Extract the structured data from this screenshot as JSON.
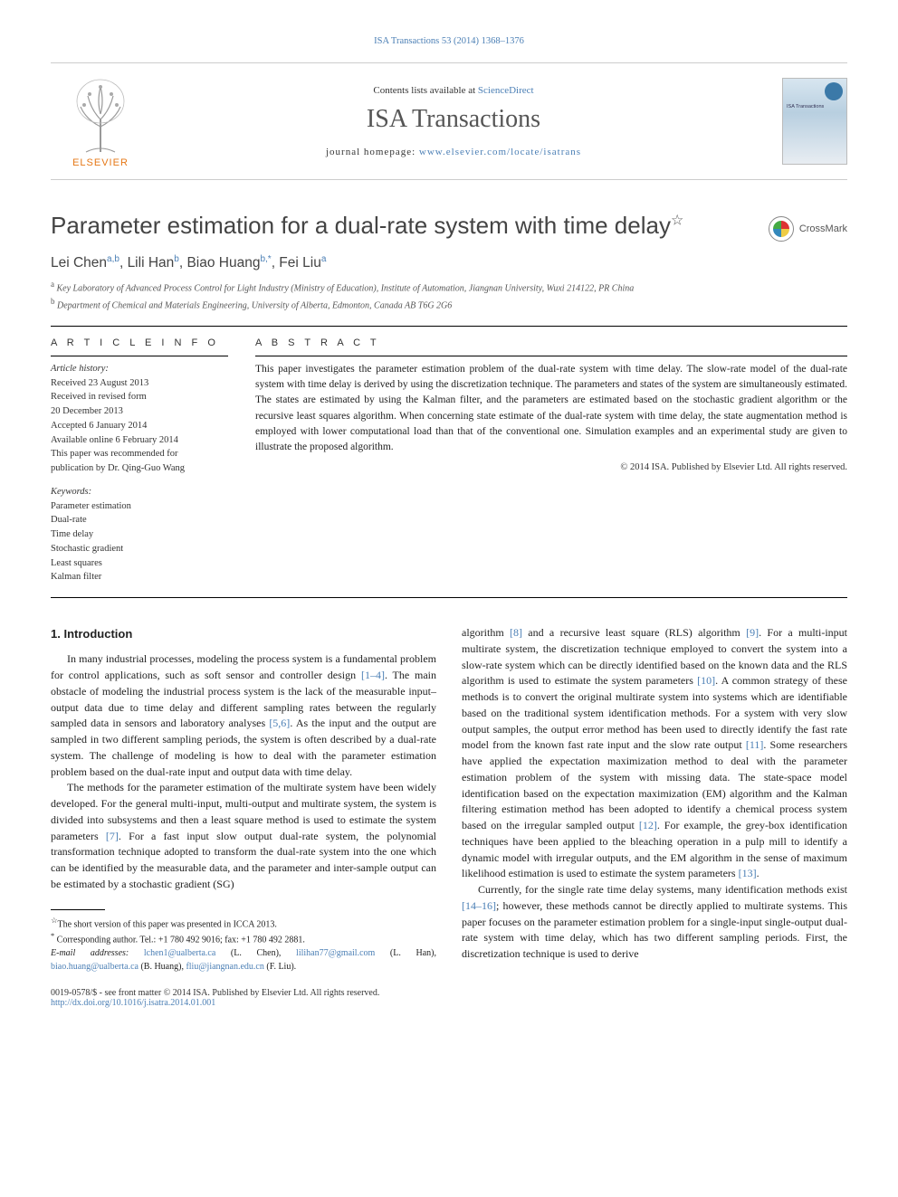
{
  "top_citation": "ISA Transactions 53 (2014) 1368–1376",
  "header": {
    "publisher_label": "ELSEVIER",
    "contents_prefix": "Contents lists available at ",
    "contents_link": "ScienceDirect",
    "journal_name": "ISA Transactions",
    "homepage_prefix": "journal homepage: ",
    "homepage_url": "www.elsevier.com/locate/isatrans"
  },
  "title": "Parameter estimation for a dual-rate system with time delay",
  "title_footnote_mark": "☆",
  "crossmark_label": "CrossMark",
  "authors_html": "Lei Chen<sup>a,b</sup>, Lili Han<sup>b</sup>, Biao Huang<sup>b,*</sup>, Fei Liu<sup>a</sup>",
  "affiliations": {
    "a": "Key Laboratory of Advanced Process Control for Light Industry (Ministry of Education), Institute of Automation, Jiangnan University, Wuxi 214122, PR China",
    "b": "Department of Chemical and Materials Engineering, University of Alberta, Edmonton, Canada AB T6G 2G6"
  },
  "article_info": {
    "heading": "A R T I C L E  I N F O",
    "history_label": "Article history:",
    "history": [
      "Received 23 August 2013",
      "Received in revised form",
      "20 December 2013",
      "Accepted 6 January 2014",
      "Available online 6 February 2014",
      "This paper was recommended for",
      "publication by Dr. Qing-Guo Wang"
    ],
    "keywords_label": "Keywords:",
    "keywords": [
      "Parameter estimation",
      "Dual-rate",
      "Time delay",
      "Stochastic gradient",
      "Least squares",
      "Kalman filter"
    ]
  },
  "abstract": {
    "heading": "A B S T R A C T",
    "text": "This paper investigates the parameter estimation problem of the dual-rate system with time delay. The slow-rate model of the dual-rate system with time delay is derived by using the discretization technique. The parameters and states of the system are simultaneously estimated. The states are estimated by using the Kalman filter, and the parameters are estimated based on the stochastic gradient algorithm or the recursive least squares algorithm. When concerning state estimate of the dual-rate system with time delay, the state augmentation method is employed with lower computational load than that of the conventional one. Simulation examples and an experimental study are given to illustrate the proposed algorithm.",
    "copyright": "© 2014 ISA. Published by Elsevier Ltd. All rights reserved."
  },
  "intro_heading": "1.  Introduction",
  "intro": {
    "p1": "In many industrial processes, modeling the process system is a fundamental problem for control applications, such as soft sensor and controller design [1–4]. The main obstacle of modeling the industrial process system is the lack of the measurable input–output data due to time delay and different sampling rates between the regularly sampled data in sensors and laboratory analyses [5,6]. As the input and the output are sampled in two different sampling periods, the system is often described by a dual-rate system. The challenge of modeling is how to deal with the parameter estimation problem based on the dual-rate input and output data with time delay.",
    "p2": "The methods for the parameter estimation of the multirate system have been widely developed. For the general multi-input, multi-output and multirate system, the system is divided into subsystems and then a least square method is used to estimate the system parameters [7]. For a fast input slow output dual-rate system, the polynomial transformation technique adopted to transform the dual-rate system into the one which can be identified by the measurable data, and the parameter and inter-sample output can be estimated by a stochastic gradient (SG)",
    "p3": "algorithm [8] and a recursive least square (RLS) algorithm [9]. For a multi-input multirate system, the discretization technique employed to convert the system into a slow-rate system which can be directly identified based on the known data and the RLS algorithm is used to estimate the system parameters [10]. A common strategy of these methods is to convert the original multirate system into systems which are identifiable based on the traditional system identification methods. For a system with very slow output samples, the output error method has been used to directly identify the fast rate model from the known fast rate input and the slow rate output [11]. Some researchers have applied the expectation maximization method to deal with the parameter estimation problem of the system with missing data. The state-space model identification based on the expectation maximization (EM) algorithm and the Kalman filtering estimation method has been adopted to identify a chemical process system based on the irregular sampled output [12]. For example, the grey-box identification techniques have been applied to the bleaching operation in a pulp mill to identify a dynamic model with irregular outputs, and the EM algorithm in the sense of maximum likelihood estimation is used to estimate the system parameters [13].",
    "p4": "Currently, for the single rate time delay systems, many identification methods exist [14–16]; however, these methods cannot be directly applied to multirate systems. This paper focuses on the parameter estimation problem for a single-input single-output dual-rate system with time delay, which has two different sampling periods. First, the discretization technique is used to derive"
  },
  "footnotes": {
    "star": "The short version of this paper was presented in ICCA 2013.",
    "corr_prefix": "Corresponding author. Tel.: +1 780 492 9016; fax: +1 780 492 2881.",
    "email_prefix": "E-mail addresses: ",
    "emails": [
      {
        "addr": "lchen1@ualberta.ca",
        "who": "(L. Chen)"
      },
      {
        "addr": "lilihan77@gmail.com",
        "who": "(L. Han)"
      },
      {
        "addr": "biao.huang@ualberta.ca",
        "who": "(B. Huang)"
      },
      {
        "addr": "fliu@jiangnan.edu.cn",
        "who": "(F. Liu)"
      }
    ]
  },
  "footer": {
    "left_line1": "0019-0578/$ - see front matter © 2014 ISA. Published by Elsevier Ltd. All rights reserved.",
    "doi": "http://dx.doi.org/10.1016/j.isatra.2014.01.001"
  },
  "colors": {
    "link": "#4b7fb5",
    "elsevier_orange": "#e67817",
    "text": "#222",
    "muted": "#555"
  },
  "typography": {
    "body_fontsize_pt": 9,
    "title_fontsize_pt": 20,
    "journal_fontsize_pt": 21,
    "abstract_fontsize_pt": 8.5
  }
}
